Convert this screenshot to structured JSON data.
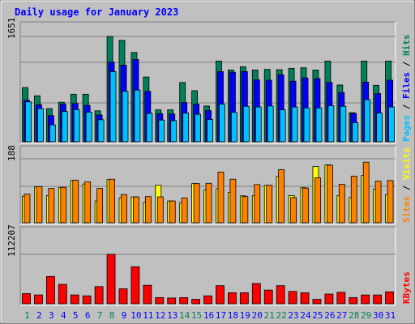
{
  "title": "Daily usage for January 2023",
  "colors": {
    "background": "#c0c0c0",
    "title": "#0000ff",
    "hits": "#00805c",
    "files": "#0000ff",
    "pages": "#00c0ff",
    "visits": "#ffff00",
    "sites": "#ff8000",
    "kbytes": "#ff0000",
    "weekend_day": "#00805c",
    "weekday": "#0000ff"
  },
  "panels": {
    "top": {
      "ymax_label": "1651",
      "legend": [
        "Pages",
        "/",
        "Files",
        "/",
        "Hits"
      ]
    },
    "mid": {
      "ymax_label": "188",
      "legend": [
        "Sites",
        "/",
        "Visits"
      ]
    },
    "bot": {
      "ymax_label": "112207",
      "legend": [
        "KBytes"
      ]
    }
  },
  "chart_data": {
    "type": "bar",
    "title": "Daily usage for January 2023",
    "categories": [
      "1",
      "2",
      "3",
      "4",
      "5",
      "6",
      "7",
      "8",
      "9",
      "10",
      "11",
      "12",
      "13",
      "14",
      "15",
      "16",
      "17",
      "18",
      "19",
      "20",
      "21",
      "22",
      "23",
      "24",
      "25",
      "26",
      "27",
      "28",
      "29",
      "30",
      "31"
    ],
    "weekend_days": [
      1,
      7,
      8,
      14,
      15,
      21,
      22,
      28,
      29
    ],
    "series": [
      {
        "name": "Hits",
        "panel": "top",
        "ymax": 1651,
        "values": [
          850,
          720,
          520,
          620,
          745,
          745,
          485,
          1651,
          1590,
          1400,
          1015,
          500,
          500,
          930,
          800,
          560,
          1265,
          1125,
          1175,
          1125,
          1135,
          1130,
          1150,
          1160,
          1125,
          1265,
          890,
          455,
          1265,
          885,
          1265
        ]
      },
      {
        "name": "Files",
        "panel": "top",
        "ymax": 1651,
        "values": [
          650,
          580,
          410,
          590,
          600,
          570,
          420,
          1250,
          1200,
          1290,
          790,
          440,
          435,
          615,
          590,
          490,
          1100,
          1090,
          1100,
          970,
          965,
          1050,
          950,
          1000,
          990,
          930,
          770,
          445,
          935,
          755,
          965
        ]
      },
      {
        "name": "Pages",
        "panel": "top",
        "ymax": 1651,
        "values": [
          625,
          520,
          265,
          475,
          505,
          465,
          345,
          1100,
          790,
          810,
          445,
          340,
          330,
          450,
          430,
          350,
          590,
          460,
          555,
          545,
          560,
          500,
          545,
          530,
          530,
          565,
          555,
          300,
          660,
          450,
          545
        ]
      },
      {
        "name": "Visits",
        "panel": "mid",
        "ymax": 188,
        "values": [
          78,
          105,
          80,
          104,
          124,
          114,
          64,
          127,
          73,
          76,
          60,
          110,
          64,
          59,
          115,
          96,
          100,
          89,
          79,
          80,
          110,
          136,
          80,
          103,
          165,
          170,
          80,
          74,
          139,
          99,
          83
        ]
      },
      {
        "name": "Sites",
        "panel": "mid",
        "ymax": 188,
        "values": [
          84,
          106,
          101,
          104,
          125,
          120,
          101,
          128,
          83,
          76,
          77,
          76,
          64,
          73,
          115,
          116,
          149,
          128,
          77,
          112,
          110,
          156,
          74,
          102,
          132,
          169,
          113,
          137,
          178,
          122,
          124
        ]
      },
      {
        "name": "KBytes",
        "panel": "bot",
        "ymax": 112207,
        "values": [
          23000,
          20000,
          62000,
          44000,
          20000,
          18000,
          39000,
          112207,
          34000,
          84000,
          42000,
          14000,
          13000,
          14000,
          10000,
          18000,
          41000,
          25000,
          25000,
          46000,
          31000,
          41000,
          28000,
          25000,
          10000,
          22000,
          26000,
          14000,
          20000,
          20000,
          27000
        ]
      }
    ]
  }
}
